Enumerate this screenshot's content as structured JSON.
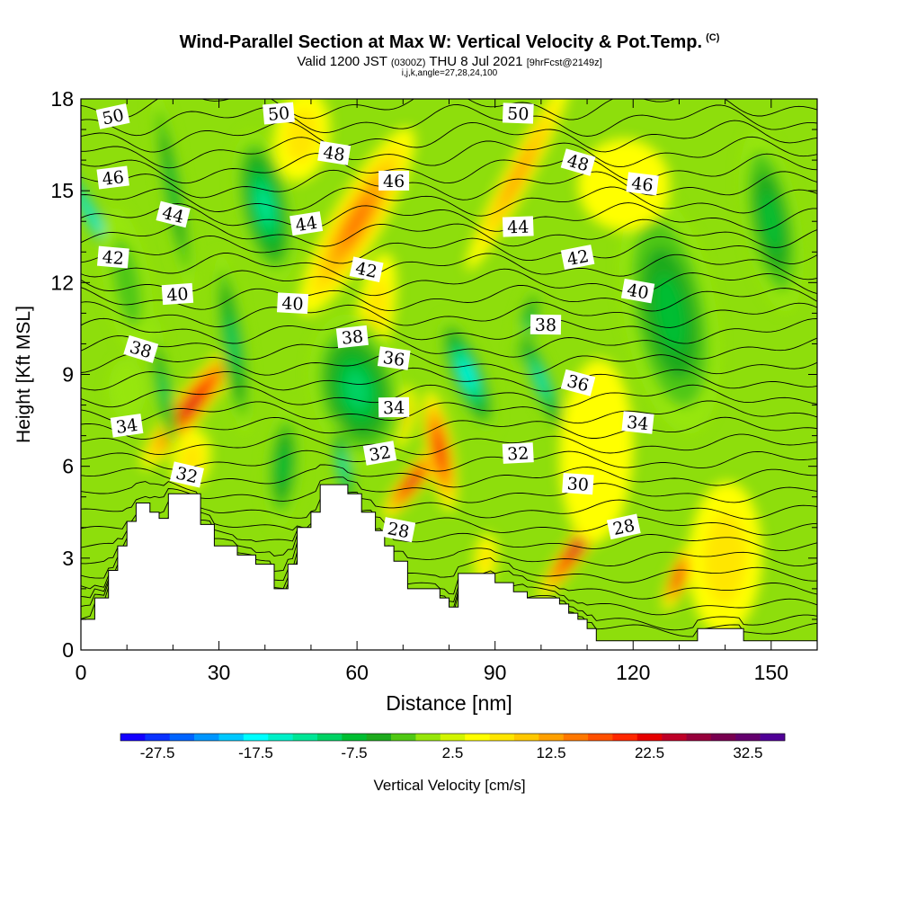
{
  "title_main": "Wind-Parallel Section at Max W: Vertical Velocity & Pot.Temp.",
  "title_mark": "(C)",
  "title_valid": "Valid 1200 JST",
  "title_utc": "(0300Z)",
  "title_date": "THU 8 Jul 2021",
  "title_fcst": "[9hrFcst@2149z]",
  "title_indices": "i,j,k,angle=27,28,24,100",
  "chart_data": {
    "type": "heatmap",
    "xlabel": "Distance [nm]",
    "ylabel": "Height [Kft MSL]",
    "xlim": [
      0,
      160
    ],
    "ylim": [
      0,
      18
    ],
    "xticks": [
      0,
      30,
      60,
      90,
      120,
      150
    ],
    "yticks": [
      0,
      3,
      6,
      9,
      12,
      15,
      18
    ],
    "colorbar": {
      "label": "Vertical Velocity [cm/s]",
      "ticks": [
        "-27.5",
        "-17.5",
        "-7.5",
        "2.5",
        "12.5",
        "22.5",
        "32.5"
      ],
      "min": -30,
      "step": 2.5,
      "colors": [
        "#1400ff",
        "#0a32ff",
        "#0064ff",
        "#0096ff",
        "#00c8ff",
        "#00ffff",
        "#00f0c8",
        "#00e696",
        "#00d264",
        "#00be32",
        "#1eaa1e",
        "#50c814",
        "#96e60a",
        "#d2f500",
        "#ffff00",
        "#ffe600",
        "#ffc800",
        "#ffa000",
        "#ff7800",
        "#ff5000",
        "#ff2800",
        "#e60000",
        "#be0028",
        "#96003c",
        "#780050",
        "#64006e",
        "#500096"
      ]
    },
    "theta_contour_labels": [
      {
        "x": 7,
        "y": 17.4,
        "v": "50"
      },
      {
        "x": 43,
        "y": 17.5,
        "v": "50"
      },
      {
        "x": 95,
        "y": 17.5,
        "v": "50"
      },
      {
        "x": 55,
        "y": 16.2,
        "v": "48"
      },
      {
        "x": 108,
        "y": 15.9,
        "v": "48"
      },
      {
        "x": 7,
        "y": 15.4,
        "v": "46"
      },
      {
        "x": 68,
        "y": 15.3,
        "v": "46"
      },
      {
        "x": 122,
        "y": 15.2,
        "v": "46"
      },
      {
        "x": 20,
        "y": 14.2,
        "v": "44"
      },
      {
        "x": 49,
        "y": 13.9,
        "v": "44"
      },
      {
        "x": 95,
        "y": 13.8,
        "v": "44"
      },
      {
        "x": 7,
        "y": 12.8,
        "v": "42"
      },
      {
        "x": 62,
        "y": 12.4,
        "v": "42"
      },
      {
        "x": 108,
        "y": 12.8,
        "v": "42"
      },
      {
        "x": 21,
        "y": 11.6,
        "v": "40"
      },
      {
        "x": 46,
        "y": 11.3,
        "v": "40"
      },
      {
        "x": 121,
        "y": 11.7,
        "v": "40"
      },
      {
        "x": 13,
        "y": 9.8,
        "v": "38"
      },
      {
        "x": 59,
        "y": 10.2,
        "v": "38"
      },
      {
        "x": 101,
        "y": 10.6,
        "v": "38"
      },
      {
        "x": 68,
        "y": 9.5,
        "v": "36"
      },
      {
        "x": 108,
        "y": 8.7,
        "v": "36"
      },
      {
        "x": 10,
        "y": 7.3,
        "v": "34"
      },
      {
        "x": 68,
        "y": 7.9,
        "v": "34"
      },
      {
        "x": 121,
        "y": 7.4,
        "v": "34"
      },
      {
        "x": 23,
        "y": 5.7,
        "v": "32"
      },
      {
        "x": 65,
        "y": 6.4,
        "v": "32"
      },
      {
        "x": 95,
        "y": 6.4,
        "v": "32"
      },
      {
        "x": 108,
        "y": 5.4,
        "v": "30"
      },
      {
        "x": 69,
        "y": 3.9,
        "v": "28"
      },
      {
        "x": 118,
        "y": 4.0,
        "v": "28"
      }
    ],
    "terrain": [
      [
        0,
        1.0
      ],
      [
        3,
        1.0
      ],
      [
        3,
        1.7
      ],
      [
        6,
        1.7
      ],
      [
        6,
        2.6
      ],
      [
        8,
        2.6
      ],
      [
        8,
        3.4
      ],
      [
        10,
        3.4
      ],
      [
        10,
        4.2
      ],
      [
        12,
        4.2
      ],
      [
        12,
        4.8
      ],
      [
        15,
        4.8
      ],
      [
        15,
        4.5
      ],
      [
        17,
        4.5
      ],
      [
        17,
        4.3
      ],
      [
        19,
        4.3
      ],
      [
        19,
        5.1
      ],
      [
        26,
        5.1
      ],
      [
        26,
        4.1
      ],
      [
        29,
        4.1
      ],
      [
        29,
        3.4
      ],
      [
        34,
        3.4
      ],
      [
        34,
        3.1
      ],
      [
        38,
        3.1
      ],
      [
        38,
        2.8
      ],
      [
        42,
        2.8
      ],
      [
        42,
        2.0
      ],
      [
        45,
        2.0
      ],
      [
        45,
        2.8
      ],
      [
        47,
        2.8
      ],
      [
        47,
        4.0
      ],
      [
        50,
        4.0
      ],
      [
        50,
        4.5
      ],
      [
        52,
        4.5
      ],
      [
        52,
        5.4
      ],
      [
        58,
        5.4
      ],
      [
        58,
        5.1
      ],
      [
        61,
        5.1
      ],
      [
        61,
        4.5
      ],
      [
        64,
        4.5
      ],
      [
        64,
        3.9
      ],
      [
        66,
        3.9
      ],
      [
        66,
        3.4
      ],
      [
        68,
        3.4
      ],
      [
        68,
        2.9
      ],
      [
        71,
        2.9
      ],
      [
        71,
        2.0
      ],
      [
        78,
        2.0
      ],
      [
        78,
        1.7
      ],
      [
        80,
        1.7
      ],
      [
        80,
        1.4
      ],
      [
        82,
        1.4
      ],
      [
        82,
        2.5
      ],
      [
        90,
        2.5
      ],
      [
        90,
        2.2
      ],
      [
        94,
        2.2
      ],
      [
        94,
        1.9
      ],
      [
        97,
        1.9
      ],
      [
        97,
        1.7
      ],
      [
        104,
        1.7
      ],
      [
        104,
        1.5
      ],
      [
        106,
        1.5
      ],
      [
        106,
        1.2
      ],
      [
        108,
        1.2
      ],
      [
        108,
        1.0
      ],
      [
        110,
        1.0
      ],
      [
        110,
        0.7
      ],
      [
        112,
        0.7
      ],
      [
        112,
        0.3
      ],
      [
        134,
        0.3
      ],
      [
        134,
        0.7
      ],
      [
        144,
        0.7
      ],
      [
        144,
        0.3
      ],
      [
        160,
        0.3
      ],
      [
        160,
        0
      ]
    ],
    "w_features": [
      {
        "x": 3,
        "y": 14,
        "sx": 2.0,
        "sy": 4.5,
        "a": -30
      },
      {
        "x": 10,
        "y": 12,
        "sx": 5,
        "sy": 2.5,
        "a": -10
      },
      {
        "x": 24,
        "y": 8,
        "sx": 3.5,
        "sy": 2.6,
        "a": 38
      },
      {
        "x": 24,
        "y": 6.2,
        "sx": 4.0,
        "sy": 1.0,
        "a": 12
      },
      {
        "x": 20,
        "y": 15,
        "sx": 2.5,
        "sy": 3.5,
        "a": -10
      },
      {
        "x": 18,
        "y": 8.5,
        "sx": 2.0,
        "sy": 2.0,
        "a": -10
      },
      {
        "x": 33,
        "y": 10,
        "sx": 3,
        "sy": 3,
        "a": -8
      },
      {
        "x": 40,
        "y": 14.5,
        "sx": 6,
        "sy": 2.5,
        "a": -12
      },
      {
        "x": 60,
        "y": 14,
        "sx": 5.5,
        "sy": 3.5,
        "a": 30
      },
      {
        "x": 64,
        "y": 11,
        "sx": 4,
        "sy": 2,
        "a": 10
      },
      {
        "x": 72,
        "y": 5.5,
        "sx": 2.5,
        "sy": 1.5,
        "a": 38
      },
      {
        "x": 70,
        "y": 7.6,
        "sx": 2.5,
        "sy": 1.0,
        "a": 10
      },
      {
        "x": 60,
        "y": 8.5,
        "sx": 10,
        "sy": 2.5,
        "a": -12
      },
      {
        "x": 84,
        "y": 9.0,
        "sx": 4,
        "sy": 2.0,
        "a": -22
      },
      {
        "x": 78,
        "y": 6.5,
        "sx": 3,
        "sy": 2.0,
        "a": -10
      },
      {
        "x": 95,
        "y": 15.5,
        "sx": 3,
        "sy": 3.5,
        "a": 28
      },
      {
        "x": 97,
        "y": 10.5,
        "sx": 2.5,
        "sy": 1.5,
        "a": 12
      },
      {
        "x": 100,
        "y": 8.8,
        "sx": 2.5,
        "sy": 2.0,
        "a": -22
      },
      {
        "x": 108,
        "y": 3.4,
        "sx": 2.5,
        "sy": 2.2,
        "a": 36
      },
      {
        "x": 130,
        "y": 2.4,
        "sx": 2.2,
        "sy": 1.2,
        "a": 22
      },
      {
        "x": 128,
        "y": 11,
        "sx": 10,
        "sy": 4,
        "a": -10
      },
      {
        "x": 150,
        "y": 14,
        "sx": 6,
        "sy": 3,
        "a": -10
      },
      {
        "x": 88,
        "y": 3.0,
        "sx": 2.5,
        "sy": 0.8,
        "a": 5
      },
      {
        "x": 118,
        "y": 15.2,
        "sx": 10,
        "sy": 1.5,
        "a": 8
      },
      {
        "x": 112,
        "y": 6.5,
        "sx": 8,
        "sy": 3,
        "a": 2
      },
      {
        "x": 140,
        "y": 3,
        "sx": 8,
        "sy": 2.5,
        "a": 2
      },
      {
        "x": 48,
        "y": 16.8,
        "sx": 6,
        "sy": 1.5,
        "a": 8
      },
      {
        "x": 10,
        "y": 8.5,
        "sx": 4,
        "sy": 1.0,
        "a": -3
      },
      {
        "x": 57,
        "y": 6.0,
        "sx": 2,
        "sy": 1.5,
        "a": -10
      },
      {
        "x": 44,
        "y": 6.0,
        "sx": 4,
        "sy": 2.0,
        "a": 4
      }
    ]
  }
}
